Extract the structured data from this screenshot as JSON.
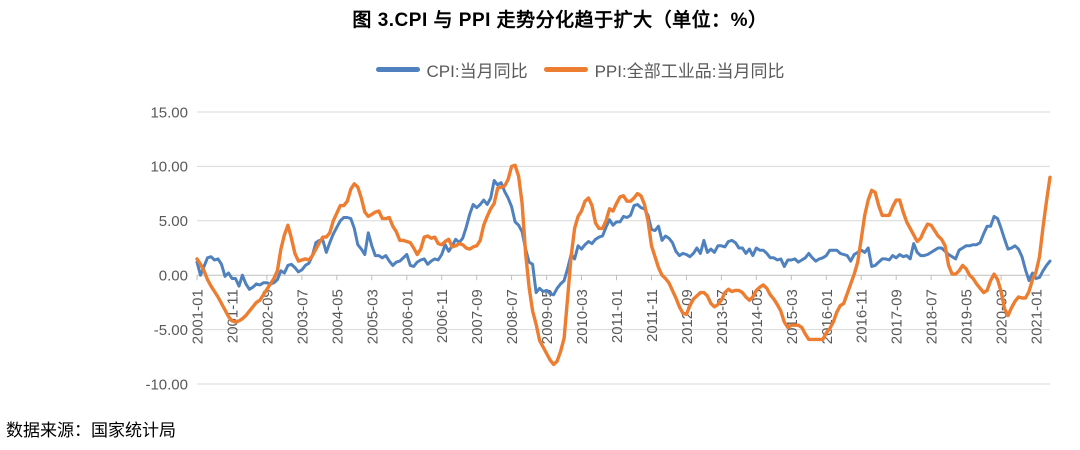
{
  "title": "图 3.CPI 与 PPI 走势分化趋于扩大（单位：%）",
  "source_note": "数据来源：国家统计局",
  "legend": [
    {
      "label": "CPI:当月同比",
      "color": "#4e81bd"
    },
    {
      "label": "PPI:全部工业品:当月同比",
      "color": "#ed7d31"
    }
  ],
  "chart_data": {
    "type": "line",
    "title": "图 3.CPI 与 PPI 走势分化趋于扩大（单位：%）",
    "xlabel": "",
    "ylabel": "",
    "x_start": "2001-01",
    "x_end": "2021-05",
    "x_unit": "month",
    "ylim": [
      -10,
      15
    ],
    "grid": "horizontal",
    "grid_color": "#d9d9d9",
    "axis_color": "#bfbfbf",
    "tick_color": "#595959",
    "legend_position": "top",
    "y_ticks": [
      15,
      10,
      5,
      0,
      -5,
      -10
    ],
    "y_tick_labels": [
      "15.00",
      "10.00",
      "5.00",
      "0.00",
      "-5.00",
      "-10.00"
    ],
    "x_tick_every": 10,
    "x_tick_labels": [
      "2001-01",
      "2001-11",
      "2002-09",
      "2003-07",
      "2004-05",
      "2005-03",
      "2006-01",
      "2006-11",
      "2007-09",
      "2008-07",
      "2009-05",
      "2010-03",
      "2011-01",
      "2011-11",
      "2012-09",
      "2013-07",
      "2014-05",
      "2015-03",
      "2016-01",
      "2016-11",
      "2017-09",
      "2018-07",
      "2019-05",
      "2020-03",
      "2021-01"
    ],
    "series": [
      {
        "id": "cpi-line",
        "name": "CPI:当月同比",
        "color": "#4e81bd",
        "width": 3,
        "values": [
          1.2,
          0.0,
          0.8,
          1.6,
          1.7,
          1.4,
          1.5,
          1.0,
          -0.1,
          0.2,
          -0.3,
          -0.3,
          -1.0,
          0.0,
          -0.8,
          -1.3,
          -1.1,
          -0.8,
          -0.9,
          -0.7,
          -0.7,
          -0.8,
          -0.7,
          -0.4,
          0.4,
          0.2,
          0.9,
          1.0,
          0.7,
          0.3,
          0.5,
          0.9,
          1.1,
          1.8,
          3.0,
          3.2,
          3.2,
          2.1,
          3.0,
          3.8,
          4.4,
          5.0,
          5.3,
          5.3,
          5.2,
          4.3,
          2.8,
          2.4,
          1.9,
          3.9,
          2.7,
          1.8,
          1.8,
          1.6,
          1.8,
          1.3,
          0.9,
          1.2,
          1.3,
          1.6,
          1.9,
          0.9,
          0.8,
          1.2,
          1.4,
          1.5,
          1.0,
          1.3,
          1.5,
          1.4,
          1.9,
          2.8,
          2.2,
          2.7,
          3.3,
          3.0,
          3.4,
          4.4,
          5.6,
          6.5,
          6.2,
          6.5,
          6.9,
          6.5,
          7.1,
          8.7,
          8.3,
          8.5,
          7.7,
          7.1,
          6.3,
          4.9,
          4.6,
          4.0,
          2.4,
          1.2,
          1.0,
          -1.6,
          -1.2,
          -1.5,
          -1.4,
          -1.7,
          -1.8,
          -1.2,
          -0.8,
          -0.5,
          0.6,
          1.9,
          1.5,
          2.7,
          2.4,
          2.8,
          3.1,
          2.9,
          3.3,
          3.5,
          3.6,
          4.4,
          5.1,
          4.6,
          4.9,
          4.9,
          5.4,
          5.3,
          5.5,
          6.4,
          6.5,
          6.2,
          6.1,
          5.5,
          4.2,
          4.1,
          4.5,
          3.2,
          3.6,
          3.4,
          3.0,
          2.2,
          1.8,
          2.0,
          1.9,
          1.7,
          2.0,
          2.5,
          2.0,
          3.2,
          2.1,
          2.4,
          2.1,
          2.7,
          2.7,
          2.6,
          3.1,
          3.2,
          3.0,
          2.5,
          2.5,
          2.0,
          2.4,
          1.8,
          2.5,
          2.3,
          2.3,
          2.0,
          1.6,
          1.6,
          1.4,
          1.5,
          0.8,
          1.4,
          1.4,
          1.5,
          1.2,
          1.4,
          1.6,
          2.0,
          1.6,
          1.3,
          1.5,
          1.6,
          1.8,
          2.3,
          2.3,
          2.3,
          2.0,
          1.9,
          1.8,
          1.3,
          1.9,
          2.1,
          2.3,
          2.1,
          2.5,
          0.8,
          0.9,
          1.2,
          1.5,
          1.5,
          1.4,
          1.8,
          1.6,
          1.9,
          1.7,
          1.8,
          1.5,
          2.9,
          2.1,
          1.8,
          1.8,
          1.9,
          2.1,
          2.3,
          2.5,
          2.5,
          2.2,
          1.9,
          1.7,
          1.5,
          2.3,
          2.5,
          2.7,
          2.7,
          2.8,
          2.8,
          3.0,
          3.8,
          4.5,
          4.5,
          5.4,
          5.2,
          4.3,
          3.3,
          2.4,
          2.5,
          2.7,
          2.4,
          1.7,
          0.5,
          -0.5,
          0.2,
          -0.3,
          -0.2,
          0.4,
          0.9,
          1.3
        ]
      },
      {
        "id": "ppi-line",
        "name": "PPI:全部工业品:当月同比",
        "color": "#ed7d31",
        "width": 3.4,
        "values": [
          1.5,
          1.0,
          0.4,
          -0.4,
          -1.0,
          -1.5,
          -2.0,
          -2.6,
          -3.2,
          -3.8,
          -4.2,
          -4.3,
          -4.2,
          -4.0,
          -3.7,
          -3.3,
          -2.9,
          -2.5,
          -2.3,
          -1.8,
          -1.3,
          -0.8,
          -0.3,
          0.4,
          2.4,
          3.7,
          4.6,
          3.4,
          2.0,
          1.3,
          1.4,
          1.5,
          1.4,
          1.8,
          2.4,
          3.0,
          3.5,
          3.5,
          3.9,
          5.0,
          5.7,
          6.4,
          6.4,
          6.8,
          7.9,
          8.4,
          8.1,
          7.1,
          5.8,
          5.4,
          5.6,
          5.8,
          5.9,
          5.2,
          5.2,
          5.3,
          4.5,
          4.0,
          3.2,
          3.2,
          3.1,
          3.0,
          2.5,
          1.9,
          2.4,
          3.5,
          3.6,
          3.4,
          3.5,
          2.9,
          2.8,
          3.1,
          3.3,
          2.6,
          2.7,
          2.9,
          2.8,
          2.5,
          2.4,
          2.6,
          2.7,
          3.2,
          4.6,
          5.4,
          6.1,
          6.6,
          8.0,
          8.1,
          8.2,
          8.8,
          10.0,
          10.1,
          9.1,
          6.6,
          2.0,
          -1.1,
          -3.3,
          -4.5,
          -6.0,
          -6.6,
          -7.2,
          -7.8,
          -8.2,
          -7.9,
          -7.0,
          -5.8,
          -2.1,
          1.7,
          4.3,
          5.4,
          5.9,
          6.8,
          7.1,
          6.4,
          4.8,
          4.3,
          4.3,
          5.0,
          6.1,
          5.9,
          6.6,
          7.2,
          7.3,
          6.8,
          6.8,
          7.1,
          7.5,
          7.3,
          6.5,
          5.0,
          2.7,
          1.7,
          0.7,
          0.0,
          -0.3,
          -0.7,
          -1.4,
          -2.1,
          -2.9,
          -3.5,
          -3.6,
          -2.8,
          -2.2,
          -1.9,
          -1.6,
          -1.6,
          -1.9,
          -2.6,
          -2.9,
          -2.7,
          -2.3,
          -1.6,
          -1.3,
          -1.5,
          -1.4,
          -1.4,
          -1.6,
          -2.0,
          -2.3,
          -2.0,
          -1.4,
          -1.1,
          -0.9,
          -1.2,
          -1.8,
          -2.2,
          -2.7,
          -3.3,
          -4.3,
          -4.8,
          -4.6,
          -4.6,
          -4.6,
          -4.8,
          -5.4,
          -5.9,
          -5.9,
          -5.9,
          -5.9,
          -5.9,
          -5.3,
          -4.9,
          -4.3,
          -3.4,
          -2.8,
          -2.6,
          -1.7,
          -0.8,
          0.1,
          1.2,
          3.3,
          5.5,
          6.9,
          7.8,
          7.6,
          6.4,
          5.5,
          5.5,
          5.5,
          6.3,
          6.9,
          6.9,
          5.8,
          4.9,
          4.3,
          3.7,
          3.1,
          3.4,
          4.1,
          4.7,
          4.6,
          4.1,
          3.6,
          3.3,
          2.7,
          0.9,
          0.1,
          0.1,
          0.4,
          0.9,
          0.6,
          0.0,
          -0.3,
          -0.8,
          -1.2,
          -1.6,
          -1.4,
          -0.5,
          0.1,
          -0.4,
          -1.5,
          -3.1,
          -3.7,
          -3.0,
          -2.4,
          -2.0,
          -2.1,
          -2.1,
          -1.5,
          -0.4,
          0.3,
          1.7,
          4.4,
          6.8,
          9.0
        ]
      }
    ]
  }
}
